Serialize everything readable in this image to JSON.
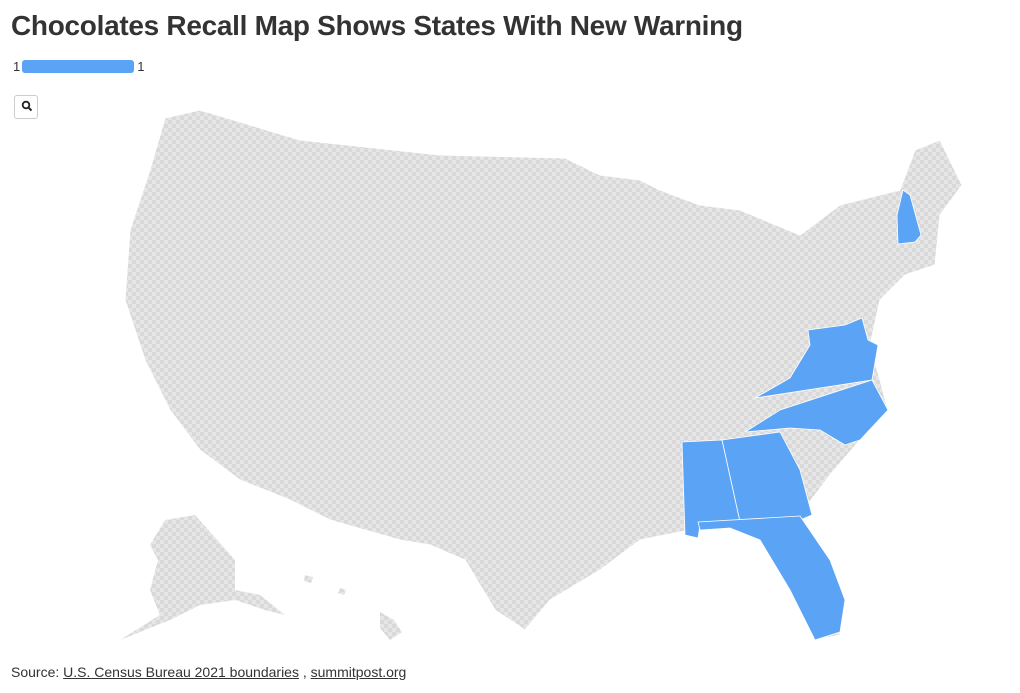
{
  "header": {
    "title": "Chocolates Recall Map Shows States With New Warning"
  },
  "legend": {
    "min": 1,
    "max": 1,
    "color": "#5ba3f5"
  },
  "footer": {
    "label": "Source:",
    "links": [
      "U.S. Census Bureau 2021 boundaries",
      "summitpost.org"
    ],
    "separator": ","
  }
}
